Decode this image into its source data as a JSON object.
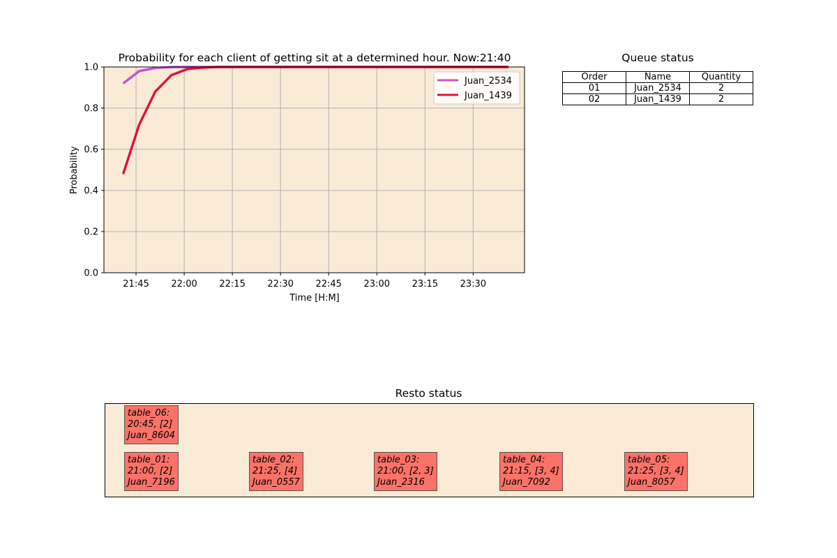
{
  "chart_data": [
    {
      "type": "line",
      "title": "Probability for each client of getting sit at a determined hour. Now:21:40",
      "xlabel": "Time [H:M]",
      "ylabel": "Probability",
      "ylim": [
        0,
        1
      ],
      "xlim": [
        "21:35",
        "23:46"
      ],
      "xticks": [
        "21:45",
        "22:00",
        "22:15",
        "22:30",
        "22:45",
        "23:00",
        "23:15",
        "23:30"
      ],
      "yticks": [
        "0.0",
        "0.2",
        "0.4",
        "0.6",
        "0.8",
        "1.0"
      ],
      "grid": true,
      "legend_position": "top-right",
      "background": "#faebd7",
      "x": [
        "21:41",
        "21:46",
        "21:51",
        "21:56",
        "22:01",
        "22:06",
        "22:11",
        "22:16",
        "22:21",
        "22:26",
        "22:31",
        "22:36",
        "22:41",
        "22:46",
        "22:51",
        "22:56",
        "23:01",
        "23:06",
        "23:11",
        "23:16",
        "23:21",
        "23:26",
        "23:31",
        "23:36",
        "23:41"
      ],
      "series": [
        {
          "name": "Juan_2534",
          "color": "#bf55d6",
          "values": [
            0.92,
            0.98,
            0.995,
            0.999,
            1,
            1,
            1,
            1,
            1,
            1,
            1,
            1,
            1,
            1,
            1,
            1,
            1,
            1,
            1,
            1,
            1,
            1,
            1,
            1,
            1
          ]
        },
        {
          "name": "Juan_1439",
          "color": "#dc143c",
          "values": [
            0.48,
            0.72,
            0.88,
            0.96,
            0.99,
            0.997,
            1,
            1,
            1,
            1,
            1,
            1,
            1,
            1,
            1,
            1,
            1,
            1,
            1,
            1,
            1,
            1,
            1,
            1,
            1
          ]
        }
      ]
    },
    {
      "type": "table",
      "title": "Queue status",
      "columns": [
        "Order",
        "Name",
        "Quantity"
      ],
      "rows": [
        [
          "01",
          "Juan_2534",
          "2"
        ],
        [
          "02",
          "Juan_1439",
          "2"
        ]
      ]
    }
  ],
  "resto": {
    "title": "Resto status",
    "tables": [
      {
        "line1": "table_06:",
        "line2": "20:45, [2]",
        "line3": "Juan_8604"
      },
      {
        "line1": "table_01:",
        "line2": "21:00, [2]",
        "line3": "Juan_7196"
      },
      {
        "line1": "table_02:",
        "line2": "21:25, [4]",
        "line3": "Juan_0557"
      },
      {
        "line1": "table_03:",
        "line2": "21:00, [2, 3]",
        "line3": "Juan_2316"
      },
      {
        "line1": "table_04:",
        "line2": "21:15, [3, 4]",
        "line3": "Juan_7092"
      },
      {
        "line1": "table_05:",
        "line2": "21:25, [3, 4]",
        "line3": "Juan_8057"
      }
    ],
    "box_color": "#fa7268",
    "panel_color": "#faebd7"
  }
}
